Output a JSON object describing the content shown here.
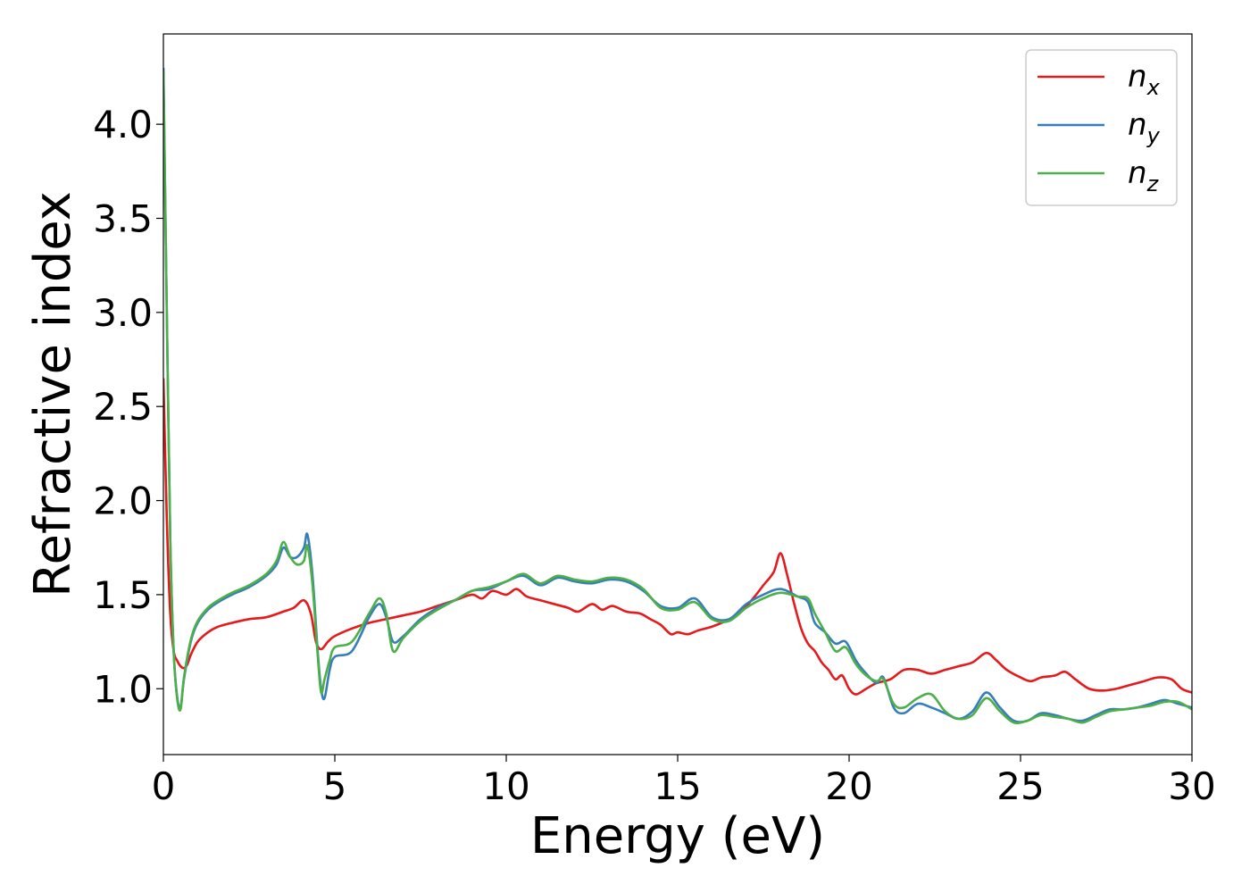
{
  "chart_data": {
    "type": "line",
    "title": "",
    "xlabel": "Energy (eV)",
    "ylabel": "Refractive index",
    "xlim": [
      0,
      30
    ],
    "ylim": [
      0.65,
      4.48
    ],
    "xticks": [
      0,
      5,
      10,
      15,
      20,
      25,
      30
    ],
    "yticks": [
      1.0,
      1.5,
      2.0,
      2.5,
      3.0,
      3.5,
      4.0
    ],
    "grid": false,
    "legend_position": "top-right",
    "series": [
      {
        "name": "n_x",
        "legend_base": "n",
        "legend_sub": "x",
        "color": "#e41a1c",
        "x": [
          0,
          0.1,
          0.2,
          0.3,
          0.4,
          0.5,
          0.6,
          0.7,
          0.8,
          1.0,
          1.3,
          1.6,
          2.0,
          2.5,
          3.0,
          3.5,
          3.8,
          4.1,
          4.3,
          4.45,
          4.6,
          4.8,
          5.0,
          5.5,
          6.0,
          6.5,
          7.0,
          7.5,
          8.0,
          8.5,
          9.0,
          9.3,
          9.6,
          10.0,
          10.3,
          10.6,
          11.0,
          11.4,
          11.8,
          12.1,
          12.5,
          12.8,
          13.1,
          13.5,
          13.9,
          14.2,
          14.5,
          14.8,
          15.0,
          15.3,
          15.6,
          16.0,
          16.4,
          16.8,
          17.2,
          17.5,
          17.8,
          18.0,
          18.2,
          18.4,
          18.6,
          18.8,
          19.0,
          19.2,
          19.4,
          19.6,
          19.8,
          20.0,
          20.2,
          20.5,
          20.8,
          21.2,
          21.6,
          22.0,
          22.4,
          22.8,
          23.2,
          23.6,
          24.0,
          24.3,
          24.6,
          25.0,
          25.3,
          25.6,
          26.0,
          26.3,
          26.6,
          27.0,
          27.4,
          27.8,
          28.2,
          28.6,
          29.0,
          29.4,
          29.7,
          30.0
        ],
        "y": [
          2.65,
          1.9,
          1.4,
          1.2,
          1.15,
          1.12,
          1.11,
          1.13,
          1.18,
          1.25,
          1.3,
          1.33,
          1.35,
          1.37,
          1.38,
          1.41,
          1.43,
          1.47,
          1.4,
          1.25,
          1.21,
          1.25,
          1.28,
          1.32,
          1.35,
          1.37,
          1.39,
          1.41,
          1.44,
          1.47,
          1.5,
          1.48,
          1.52,
          1.5,
          1.53,
          1.49,
          1.47,
          1.45,
          1.43,
          1.41,
          1.45,
          1.42,
          1.44,
          1.41,
          1.4,
          1.37,
          1.34,
          1.29,
          1.3,
          1.29,
          1.31,
          1.33,
          1.36,
          1.4,
          1.48,
          1.55,
          1.62,
          1.72,
          1.6,
          1.45,
          1.32,
          1.24,
          1.2,
          1.14,
          1.1,
          1.05,
          1.07,
          1.0,
          0.97,
          1.0,
          1.03,
          1.05,
          1.1,
          1.1,
          1.08,
          1.1,
          1.12,
          1.14,
          1.19,
          1.15,
          1.1,
          1.06,
          1.04,
          1.06,
          1.07,
          1.09,
          1.05,
          1.0,
          0.99,
          1.0,
          1.02,
          1.04,
          1.06,
          1.05,
          1.0,
          0.98
        ]
      },
      {
        "name": "n_y",
        "legend_base": "n",
        "legend_sub": "y",
        "color": "#377eb8",
        "x": [
          0,
          0.1,
          0.2,
          0.3,
          0.4,
          0.5,
          0.6,
          0.8,
          1.0,
          1.3,
          1.6,
          2.0,
          2.5,
          3.0,
          3.3,
          3.5,
          3.7,
          3.9,
          4.1,
          4.2,
          4.35,
          4.5,
          4.6,
          4.7,
          4.85,
          5.0,
          5.5,
          6.0,
          6.3,
          6.5,
          6.7,
          7.0,
          7.5,
          8.0,
          8.5,
          9.0,
          9.5,
          10.0,
          10.5,
          11.0,
          11.5,
          12.0,
          12.5,
          13.0,
          13.5,
          14.0,
          14.5,
          15.0,
          15.5,
          16.0,
          16.5,
          17.0,
          17.5,
          18.0,
          18.5,
          18.8,
          19.0,
          19.3,
          19.6,
          19.9,
          20.2,
          20.5,
          20.8,
          21.0,
          21.3,
          21.6,
          22.0,
          22.4,
          22.8,
          23.2,
          23.6,
          24.0,
          24.4,
          24.8,
          25.2,
          25.6,
          26.0,
          26.4,
          26.8,
          27.2,
          27.6,
          28.0,
          28.4,
          28.8,
          29.2,
          29.6,
          30.0
        ],
        "y": [
          4.3,
          3.0,
          1.8,
          1.2,
          0.96,
          0.9,
          1.05,
          1.25,
          1.35,
          1.42,
          1.46,
          1.5,
          1.54,
          1.6,
          1.66,
          1.75,
          1.7,
          1.7,
          1.75,
          1.82,
          1.6,
          1.2,
          1.0,
          0.95,
          1.1,
          1.17,
          1.2,
          1.38,
          1.45,
          1.38,
          1.25,
          1.28,
          1.37,
          1.43,
          1.47,
          1.52,
          1.53,
          1.57,
          1.6,
          1.55,
          1.59,
          1.57,
          1.56,
          1.58,
          1.57,
          1.52,
          1.44,
          1.43,
          1.48,
          1.38,
          1.37,
          1.45,
          1.5,
          1.53,
          1.49,
          1.46,
          1.35,
          1.3,
          1.24,
          1.25,
          1.15,
          1.08,
          1.03,
          1.06,
          0.9,
          0.87,
          0.92,
          0.9,
          0.87,
          0.84,
          0.88,
          0.98,
          0.9,
          0.83,
          0.83,
          0.87,
          0.86,
          0.84,
          0.83,
          0.86,
          0.89,
          0.89,
          0.9,
          0.92,
          0.94,
          0.92,
          0.9
        ]
      },
      {
        "name": "n_z",
        "legend_base": "n",
        "legend_sub": "z",
        "color": "#4daf4a",
        "x": [
          0,
          0.1,
          0.2,
          0.3,
          0.4,
          0.5,
          0.6,
          0.8,
          1.0,
          1.3,
          1.6,
          2.0,
          2.5,
          3.0,
          3.3,
          3.5,
          3.7,
          3.9,
          4.1,
          4.2,
          4.35,
          4.5,
          4.6,
          4.7,
          4.85,
          5.0,
          5.5,
          6.0,
          6.3,
          6.5,
          6.7,
          7.0,
          7.5,
          8.0,
          8.5,
          9.0,
          9.5,
          10.0,
          10.5,
          11.0,
          11.5,
          12.0,
          12.5,
          13.0,
          13.5,
          14.0,
          14.5,
          15.0,
          15.5,
          16.0,
          16.5,
          17.0,
          17.5,
          18.0,
          18.5,
          18.8,
          19.0,
          19.3,
          19.6,
          19.9,
          20.2,
          20.5,
          20.8,
          21.0,
          21.3,
          21.6,
          22.0,
          22.4,
          22.8,
          23.2,
          23.6,
          24.0,
          24.4,
          24.8,
          25.2,
          25.6,
          26.0,
          26.4,
          26.8,
          27.2,
          27.6,
          28.0,
          28.4,
          28.8,
          29.2,
          29.6,
          30.0
        ],
        "y": [
          4.28,
          3.0,
          1.8,
          1.2,
          0.95,
          0.89,
          1.06,
          1.26,
          1.36,
          1.43,
          1.47,
          1.51,
          1.55,
          1.61,
          1.68,
          1.78,
          1.7,
          1.66,
          1.68,
          1.76,
          1.55,
          1.18,
          0.98,
          1.05,
          1.15,
          1.22,
          1.25,
          1.4,
          1.48,
          1.4,
          1.2,
          1.27,
          1.36,
          1.42,
          1.47,
          1.52,
          1.54,
          1.57,
          1.61,
          1.56,
          1.6,
          1.58,
          1.57,
          1.59,
          1.58,
          1.53,
          1.43,
          1.42,
          1.46,
          1.37,
          1.36,
          1.43,
          1.48,
          1.51,
          1.49,
          1.48,
          1.4,
          1.3,
          1.2,
          1.22,
          1.13,
          1.07,
          1.04,
          1.05,
          0.92,
          0.9,
          0.95,
          0.97,
          0.88,
          0.84,
          0.86,
          0.95,
          0.88,
          0.82,
          0.83,
          0.86,
          0.85,
          0.84,
          0.82,
          0.85,
          0.88,
          0.89,
          0.9,
          0.91,
          0.93,
          0.93,
          0.89
        ]
      }
    ]
  }
}
